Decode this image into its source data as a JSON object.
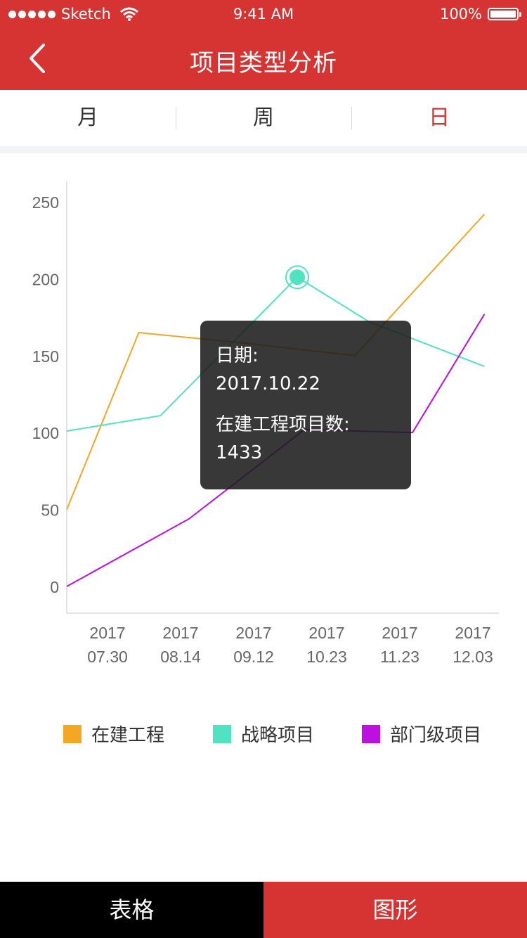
{
  "status_bar": {
    "carrier": "Sketch",
    "time": "9:41 AM",
    "battery": "100%"
  },
  "nav": {
    "title": "项目类型分析"
  },
  "tabs": [
    {
      "label": "月"
    },
    {
      "label": "周"
    },
    {
      "label": "日"
    }
  ],
  "active_tab_index": 2,
  "colors": {
    "brand": "#d63333",
    "tab_active": "#d63333"
  },
  "chart_data": {
    "type": "line",
    "x_ticks": [
      {
        "year": "2017",
        "date": "07.30"
      },
      {
        "year": "2017",
        "date": "08.14"
      },
      {
        "year": "2017",
        "date": "09.12"
      },
      {
        "year": "2017",
        "date": "10.23"
      },
      {
        "year": "2017",
        "date": "11.23"
      },
      {
        "year": "2017",
        "date": "12.03"
      }
    ],
    "y_ticks": [
      "0",
      "50",
      "100",
      "150",
      "200",
      "250"
    ],
    "ylim": [
      0,
      250
    ],
    "x_range": [
      0,
      6
    ],
    "grid": false,
    "series": [
      {
        "name": "在建工程",
        "color": "#f5a623",
        "points": [
          [
            0,
            50
          ],
          [
            1,
            165
          ],
          [
            2.5,
            158
          ],
          [
            4,
            150
          ],
          [
            5.8,
            242
          ]
        ]
      },
      {
        "name": "战略项目",
        "color": "#50e3c2",
        "points": [
          [
            0,
            101
          ],
          [
            1.3,
            111
          ],
          [
            3.2,
            201
          ],
          [
            4.2,
            172
          ],
          [
            5.8,
            143
          ]
        ]
      },
      {
        "name": "部门级项目",
        "color": "#bd10e0",
        "points": [
          [
            0,
            0
          ],
          [
            1.7,
            44
          ],
          [
            3.3,
            102
          ],
          [
            4.8,
            100
          ],
          [
            5.8,
            177
          ]
        ]
      }
    ],
    "highlight": {
      "series": 1,
      "point": 2
    }
  },
  "tooltip": {
    "date_label": "日期:",
    "date_value": "2017.10.22",
    "count_label": "在建工程项目数:",
    "count_value": "1433"
  },
  "bottom_bar": {
    "table_label": "表格",
    "graph_label": "图形"
  }
}
